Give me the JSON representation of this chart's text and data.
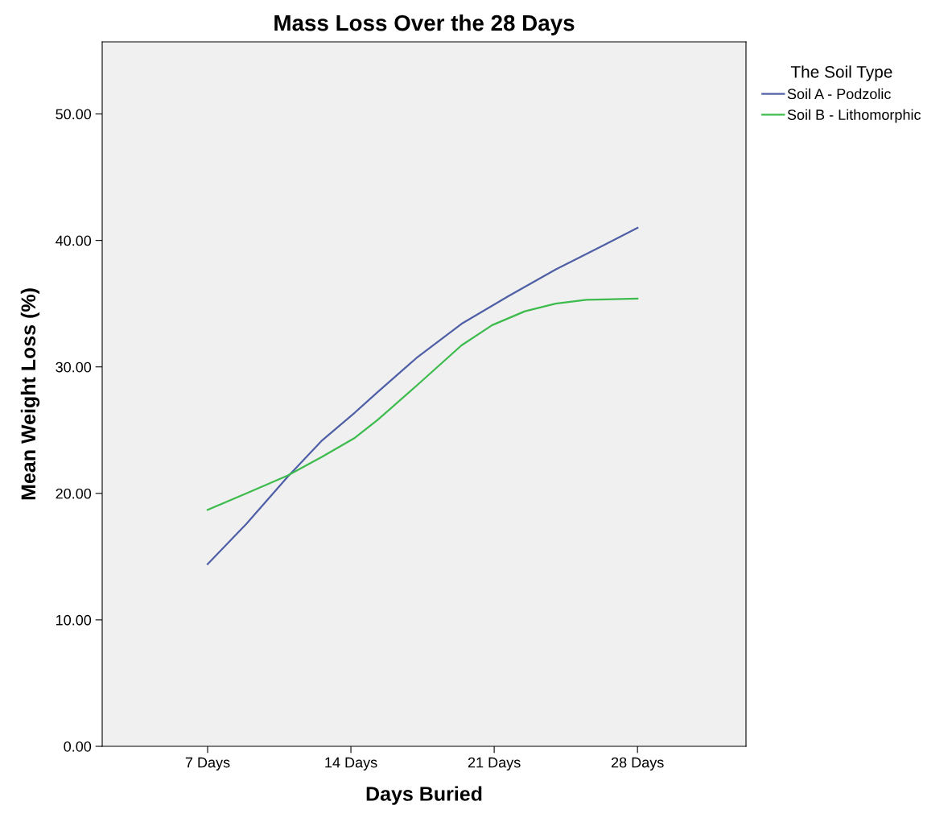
{
  "chart_data": {
    "type": "line",
    "title": "Mass Loss Over the 28 Days",
    "xlabel": "Days Buried",
    "ylabel": "Mean Weight Loss (%)",
    "legend_title": "The Soil Type",
    "xlim": [
      1.85,
      33.3
    ],
    "xticks": [
      {
        "value": 7,
        "label": "7 Days"
      },
      {
        "value": 14,
        "label": "14 Days"
      },
      {
        "value": 21,
        "label": "21 Days"
      },
      {
        "value": 28,
        "label": "28 Days"
      }
    ],
    "series": [
      {
        "name": "Soil A - Podzolic",
        "color": "#4f5fa6",
        "x": [
          7,
          8.9,
          10.9,
          12.6,
          14.2,
          15.3,
          17.2,
          19.4,
          21.7,
          24.0,
          26.2,
          28
        ],
        "values": [
          14.4,
          17.6,
          21.3,
          24.2,
          26.4,
          28.0,
          30.7,
          33.4,
          35.6,
          37.7,
          39.5,
          41.0
        ]
      },
      {
        "name": "Soil B - Lithomorphic",
        "color": "#3dbb4d",
        "x": [
          7,
          8.9,
          10.9,
          12.6,
          14.2,
          15.3,
          17.2,
          19.4,
          20.9,
          22.5,
          24.0,
          25.5,
          28
        ],
        "values": [
          18.7,
          20.0,
          21.4,
          22.9,
          24.4,
          25.8,
          28.5,
          31.7,
          33.3,
          34.4,
          35.0,
          35.3,
          35.4
        ]
      }
    ],
    "ylim": [
      0,
      55.7
    ],
    "yticks": [
      {
        "value": 0,
        "label": "0.00"
      },
      {
        "value": 10,
        "label": "10.00"
      },
      {
        "value": 20,
        "label": "20.00"
      },
      {
        "value": 30,
        "label": "30.00"
      },
      {
        "value": 40,
        "label": "40.00"
      },
      {
        "value": 50,
        "label": "50.00"
      }
    ],
    "grid": false,
    "legend": "top right",
    "marker": "none",
    "line_style": "solid"
  }
}
